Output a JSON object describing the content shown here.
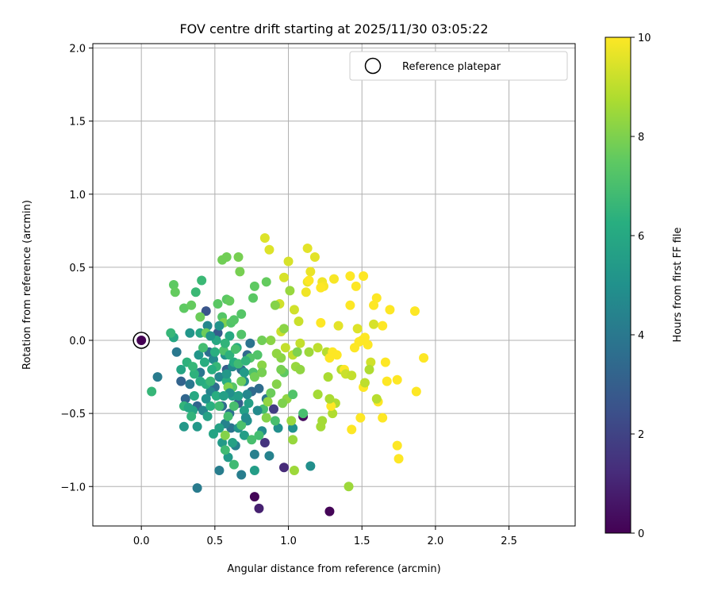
{
  "chart_data": {
    "type": "scatter",
    "title": "FOV centre drift starting at 2025/11/30 03:05:22",
    "xlabel": "Angular distance from reference (arcmin)",
    "ylabel": "Rotation from reference (arcmin)",
    "xlim": [
      -0.33,
      2.95
    ],
    "ylim": [
      -1.27,
      2.03
    ],
    "xticks": [
      0.0,
      0.5,
      1.0,
      1.5,
      2.0,
      2.5
    ],
    "yticks": [
      -1.0,
      -0.5,
      0.0,
      0.5,
      1.0,
      1.5,
      2.0
    ],
    "xtick_labels": [
      "0.0",
      "0.5",
      "1.0",
      "1.5",
      "2.0",
      "2.5"
    ],
    "ytick_labels": [
      "−1.0",
      "−0.5",
      "0.0",
      "0.5",
      "1.0",
      "1.5",
      "2.0"
    ],
    "grid": true,
    "legend": {
      "position": "top-right",
      "entries": [
        "Reference platepar"
      ]
    },
    "reference_point": {
      "x": 0.0,
      "y": 0.0,
      "hours": 0.0
    },
    "colorbar": {
      "label": "Hours from first FF file",
      "range": [
        0,
        10
      ],
      "ticks": [
        0,
        2,
        4,
        6,
        8,
        10
      ],
      "tick_labels": [
        "0",
        "2",
        "4",
        "6",
        "8",
        "10"
      ],
      "colormap": "viridis"
    },
    "points": [
      {
        "x": 0.77,
        "y": -1.07,
        "h": 0.1
      },
      {
        "x": 1.28,
        "y": -1.17,
        "h": 0.1
      },
      {
        "x": 1.1,
        "y": -0.52,
        "h": 0.3
      },
      {
        "x": 0.8,
        "y": -1.15,
        "h": 0.9
      },
      {
        "x": 0.97,
        "y": -0.87,
        "h": 1.2
      },
      {
        "x": 0.84,
        "y": -0.7,
        "h": 1.5
      },
      {
        "x": 0.9,
        "y": -0.47,
        "h": 1.8
      },
      {
        "x": 0.44,
        "y": 0.2,
        "h": 2.6
      },
      {
        "x": 0.52,
        "y": 0.05,
        "h": 2.9
      },
      {
        "x": 0.58,
        "y": -0.2,
        "h": 3.0
      },
      {
        "x": 0.66,
        "y": -0.43,
        "h": 3.1
      },
      {
        "x": 0.27,
        "y": -0.28,
        "h": 3.2
      },
      {
        "x": 0.38,
        "y": -0.45,
        "h": 3.3
      },
      {
        "x": 0.3,
        "y": -0.4,
        "h": 3.3
      },
      {
        "x": 0.72,
        "y": -0.1,
        "h": 3.4
      },
      {
        "x": 0.75,
        "y": -0.35,
        "h": 3.4
      },
      {
        "x": 0.8,
        "y": -0.33,
        "h": 3.5
      },
      {
        "x": 0.55,
        "y": -0.45,
        "h": 3.5
      },
      {
        "x": 0.5,
        "y": -0.32,
        "h": 3.6
      },
      {
        "x": 0.46,
        "y": -0.08,
        "h": 3.6
      },
      {
        "x": 0.6,
        "y": -0.5,
        "h": 3.7
      },
      {
        "x": 0.68,
        "y": -0.2,
        "h": 3.7
      },
      {
        "x": 0.74,
        "y": -0.02,
        "h": 3.8
      },
      {
        "x": 0.61,
        "y": -0.6,
        "h": 3.8
      },
      {
        "x": 0.85,
        "y": -0.4,
        "h": 3.9
      },
      {
        "x": 0.4,
        "y": -0.22,
        "h": 3.9
      },
      {
        "x": 0.33,
        "y": -0.3,
        "h": 4.0
      },
      {
        "x": 0.24,
        "y": -0.08,
        "h": 4.0
      },
      {
        "x": 0.11,
        "y": -0.25,
        "h": 4.1
      },
      {
        "x": 0.38,
        "y": -1.01,
        "h": 4.1
      },
      {
        "x": 0.53,
        "y": -0.89,
        "h": 4.2
      },
      {
        "x": 0.68,
        "y": -0.92,
        "h": 4.2
      },
      {
        "x": 0.64,
        "y": -0.72,
        "h": 4.3
      },
      {
        "x": 0.77,
        "y": -0.78,
        "h": 4.3
      },
      {
        "x": 0.87,
        "y": -0.79,
        "h": 4.4
      },
      {
        "x": 0.57,
        "y": -0.57,
        "h": 4.4
      },
      {
        "x": 0.42,
        "y": -0.48,
        "h": 4.5
      },
      {
        "x": 0.47,
        "y": -0.35,
        "h": 4.5
      },
      {
        "x": 0.53,
        "y": -0.25,
        "h": 4.6
      },
      {
        "x": 0.45,
        "y": 0.1,
        "h": 4.6
      },
      {
        "x": 0.49,
        "y": -0.13,
        "h": 4.7
      },
      {
        "x": 0.62,
        "y": -0.18,
        "h": 4.7
      },
      {
        "x": 0.7,
        "y": -0.28,
        "h": 4.8
      },
      {
        "x": 0.82,
        "y": -0.62,
        "h": 4.8
      },
      {
        "x": 1.15,
        "y": -0.86,
        "h": 4.9
      },
      {
        "x": 0.93,
        "y": -0.6,
        "h": 4.9
      },
      {
        "x": 1.03,
        "y": -0.6,
        "h": 5.0
      },
      {
        "x": 0.72,
        "y": -0.55,
        "h": 5.0
      },
      {
        "x": 0.66,
        "y": -0.6,
        "h": 5.1
      },
      {
        "x": 0.57,
        "y": -0.1,
        "h": 5.1
      },
      {
        "x": 0.39,
        "y": -0.1,
        "h": 5.2
      },
      {
        "x": 0.33,
        "y": 0.05,
        "h": 5.2
      },
      {
        "x": 0.29,
        "y": -0.59,
        "h": 5.3
      },
      {
        "x": 0.38,
        "y": -0.59,
        "h": 5.3
      },
      {
        "x": 0.55,
        "y": -0.7,
        "h": 5.4
      },
      {
        "x": 0.59,
        "y": -0.8,
        "h": 5.4
      },
      {
        "x": 0.77,
        "y": -0.89,
        "h": 5.5
      },
      {
        "x": 0.7,
        "y": -0.65,
        "h": 5.5
      },
      {
        "x": 0.73,
        "y": -0.43,
        "h": 5.6
      },
      {
        "x": 0.62,
        "y": -0.38,
        "h": 5.6
      },
      {
        "x": 0.53,
        "y": -0.6,
        "h": 5.7
      },
      {
        "x": 0.45,
        "y": -0.52,
        "h": 5.7
      },
      {
        "x": 0.35,
        "y": -0.48,
        "h": 5.8
      },
      {
        "x": 0.27,
        "y": -0.2,
        "h": 5.8
      },
      {
        "x": 0.22,
        "y": 0.02,
        "h": 5.9
      },
      {
        "x": 0.4,
        "y": 0.05,
        "h": 5.9
      },
      {
        "x": 0.51,
        "y": 0.0,
        "h": 6.0
      },
      {
        "x": 0.6,
        "y": 0.03,
        "h": 6.0
      },
      {
        "x": 0.65,
        "y": -0.05,
        "h": 6.1
      },
      {
        "x": 0.63,
        "y": -0.15,
        "h": 6.1
      },
      {
        "x": 0.58,
        "y": -0.28,
        "h": 6.2
      },
      {
        "x": 0.51,
        "y": -0.38,
        "h": 6.2
      },
      {
        "x": 0.47,
        "y": -0.45,
        "h": 6.3
      },
      {
        "x": 0.44,
        "y": -0.3,
        "h": 6.3
      },
      {
        "x": 0.36,
        "y": -0.23,
        "h": 6.4
      },
      {
        "x": 0.31,
        "y": -0.15,
        "h": 6.4
      },
      {
        "x": 0.29,
        "y": -0.45,
        "h": 6.5
      },
      {
        "x": 0.34,
        "y": -0.52,
        "h": 6.5
      },
      {
        "x": 0.07,
        "y": -0.35,
        "h": 6.6
      },
      {
        "x": 0.2,
        "y": 0.05,
        "h": 6.6
      },
      {
        "x": 0.41,
        "y": 0.41,
        "h": 6.7
      },
      {
        "x": 0.37,
        "y": 0.33,
        "h": 6.7
      },
      {
        "x": 0.63,
        "y": -0.85,
        "h": 6.8
      },
      {
        "x": 0.57,
        "y": -0.75,
        "h": 6.8
      },
      {
        "x": 0.8,
        "y": -0.65,
        "h": 6.9
      },
      {
        "x": 0.83,
        "y": -0.47,
        "h": 6.9
      },
      {
        "x": 0.91,
        "y": -0.55,
        "h": 7.0
      },
      {
        "x": 0.75,
        "y": -0.68,
        "h": 7.0
      },
      {
        "x": 0.68,
        "y": -0.58,
        "h": 7.1
      },
      {
        "x": 0.76,
        "y": -0.22,
        "h": 7.1
      },
      {
        "x": 0.68,
        "y": 0.04,
        "h": 7.2
      },
      {
        "x": 0.74,
        "y": -0.12,
        "h": 7.2
      },
      {
        "x": 0.62,
        "y": -0.32,
        "h": 7.3
      },
      {
        "x": 0.55,
        "y": 0.16,
        "h": 7.3
      },
      {
        "x": 0.52,
        "y": 0.25,
        "h": 7.4
      },
      {
        "x": 0.58,
        "y": 0.28,
        "h": 7.4
      },
      {
        "x": 0.29,
        "y": 0.22,
        "h": 7.5
      },
      {
        "x": 0.22,
        "y": 0.38,
        "h": 7.5
      },
      {
        "x": 0.23,
        "y": 0.33,
        "h": 7.6
      },
      {
        "x": 0.34,
        "y": 0.24,
        "h": 7.6
      },
      {
        "x": 0.4,
        "y": 0.16,
        "h": 7.7
      },
      {
        "x": 0.44,
        "y": 0.05,
        "h": 7.7
      },
      {
        "x": 0.55,
        "y": 0.55,
        "h": 7.8
      },
      {
        "x": 0.58,
        "y": 0.57,
        "h": 7.8
      },
      {
        "x": 0.66,
        "y": 0.57,
        "h": 7.9
      },
      {
        "x": 0.67,
        "y": 0.47,
        "h": 7.9
      },
      {
        "x": 0.56,
        "y": 0.12,
        "h": 8.0
      },
      {
        "x": 0.59,
        "y": -0.32,
        "h": 8.0
      },
      {
        "x": 0.57,
        "y": -0.65,
        "h": 8.1
      },
      {
        "x": 0.85,
        "y": -0.53,
        "h": 8.1
      },
      {
        "x": 0.82,
        "y": -0.17,
        "h": 8.2
      },
      {
        "x": 0.88,
        "y": 0.0,
        "h": 8.2
      },
      {
        "x": 0.86,
        "y": -0.42,
        "h": 8.3
      },
      {
        "x": 0.99,
        "y": -0.4,
        "h": 8.3
      },
      {
        "x": 1.02,
        "y": -0.55,
        "h": 8.4
      },
      {
        "x": 1.03,
        "y": -0.68,
        "h": 8.4
      },
      {
        "x": 1.04,
        "y": -0.89,
        "h": 8.5
      },
      {
        "x": 1.41,
        "y": -1.0,
        "h": 8.5
      },
      {
        "x": 1.23,
        "y": -0.55,
        "h": 8.6
      },
      {
        "x": 1.22,
        "y": -0.59,
        "h": 8.6
      },
      {
        "x": 1.27,
        "y": -0.25,
        "h": 8.7
      },
      {
        "x": 1.2,
        "y": -0.37,
        "h": 8.7
      },
      {
        "x": 1.32,
        "y": -0.43,
        "h": 8.8
      },
      {
        "x": 1.3,
        "y": -0.5,
        "h": 8.8
      },
      {
        "x": 1.36,
        "y": -0.2,
        "h": 8.9
      },
      {
        "x": 1.26,
        "y": -0.08,
        "h": 8.9
      },
      {
        "x": 1.2,
        "y": -0.05,
        "h": 9.0
      },
      {
        "x": 1.03,
        "y": -0.1,
        "h": 9.0
      },
      {
        "x": 1.08,
        "y": -0.02,
        "h": 9.1
      },
      {
        "x": 0.98,
        "y": -0.05,
        "h": 9.1
      },
      {
        "x": 0.95,
        "y": 0.06,
        "h": 9.2
      },
      {
        "x": 1.07,
        "y": 0.13,
        "h": 9.2
      },
      {
        "x": 1.04,
        "y": 0.21,
        "h": 9.3
      },
      {
        "x": 0.94,
        "y": 0.25,
        "h": 9.3
      },
      {
        "x": 0.97,
        "y": 0.43,
        "h": 9.4
      },
      {
        "x": 1.0,
        "y": 0.54,
        "h": 9.4
      },
      {
        "x": 0.87,
        "y": 0.62,
        "h": 9.5
      },
      {
        "x": 0.84,
        "y": 0.7,
        "h": 9.5
      },
      {
        "x": 1.13,
        "y": 0.63,
        "h": 9.6
      },
      {
        "x": 1.18,
        "y": 0.57,
        "h": 9.6
      },
      {
        "x": 1.15,
        "y": 0.47,
        "h": 9.7
      },
      {
        "x": 1.13,
        "y": 0.4,
        "h": 9.7
      },
      {
        "x": 1.23,
        "y": 0.4,
        "h": 9.8
      },
      {
        "x": 1.12,
        "y": 0.33,
        "h": 9.8
      },
      {
        "x": 1.24,
        "y": 0.37,
        "h": 9.9
      },
      {
        "x": 1.31,
        "y": 0.42,
        "h": 9.9
      },
      {
        "x": 1.42,
        "y": 0.44,
        "h": 10.0
      },
      {
        "x": 1.51,
        "y": 0.44,
        "h": 10.0
      },
      {
        "x": 1.46,
        "y": 0.37,
        "h": 10.0
      },
      {
        "x": 1.6,
        "y": 0.29,
        "h": 10.0
      },
      {
        "x": 1.58,
        "y": 0.24,
        "h": 10.0
      },
      {
        "x": 1.42,
        "y": 0.24,
        "h": 10.0
      },
      {
        "x": 1.69,
        "y": 0.21,
        "h": 10.0
      },
      {
        "x": 1.86,
        "y": 0.2,
        "h": 10.0
      },
      {
        "x": 1.64,
        "y": 0.1,
        "h": 10.0
      },
      {
        "x": 1.5,
        "y": 0.0,
        "h": 10.0
      },
      {
        "x": 1.54,
        "y": -0.03,
        "h": 10.0
      },
      {
        "x": 1.48,
        "y": -0.01,
        "h": 10.0
      },
      {
        "x": 1.45,
        "y": -0.05,
        "h": 10.0
      },
      {
        "x": 1.52,
        "y": 0.02,
        "h": 10.0
      },
      {
        "x": 1.92,
        "y": -0.12,
        "h": 10.0
      },
      {
        "x": 1.66,
        "y": -0.15,
        "h": 10.0
      },
      {
        "x": 1.74,
        "y": -0.27,
        "h": 10.0
      },
      {
        "x": 1.87,
        "y": -0.35,
        "h": 10.0
      },
      {
        "x": 1.67,
        "y": -0.28,
        "h": 10.0
      },
      {
        "x": 1.51,
        "y": -0.32,
        "h": 10.0
      },
      {
        "x": 1.38,
        "y": -0.2,
        "h": 10.0
      },
      {
        "x": 1.3,
        "y": -0.08,
        "h": 10.0
      },
      {
        "x": 1.28,
        "y": -0.12,
        "h": 10.0
      },
      {
        "x": 1.33,
        "y": -0.1,
        "h": 10.0
      },
      {
        "x": 1.49,
        "y": -0.53,
        "h": 10.0
      },
      {
        "x": 1.61,
        "y": -0.42,
        "h": 10.0
      },
      {
        "x": 1.64,
        "y": -0.53,
        "h": 10.0
      },
      {
        "x": 1.74,
        "y": -0.72,
        "h": 10.0
      },
      {
        "x": 1.75,
        "y": -0.81,
        "h": 10.0
      },
      {
        "x": 1.43,
        "y": -0.61,
        "h": 10.0
      },
      {
        "x": 1.29,
        "y": -0.45,
        "h": 10.0
      },
      {
        "x": 1.22,
        "y": 0.12,
        "h": 10.0
      },
      {
        "x": 1.22,
        "y": 0.36,
        "h": 10.0
      },
      {
        "x": 1.14,
        "y": 0.41,
        "h": 10.0
      },
      {
        "x": 1.34,
        "y": 0.1,
        "h": 9.6
      },
      {
        "x": 1.47,
        "y": 0.08,
        "h": 9.5
      },
      {
        "x": 1.58,
        "y": 0.11,
        "h": 9.4
      },
      {
        "x": 1.56,
        "y": -0.15,
        "h": 9.3
      },
      {
        "x": 1.39,
        "y": -0.23,
        "h": 9.2
      },
      {
        "x": 1.43,
        "y": -0.24,
        "h": 9.1
      },
      {
        "x": 1.52,
        "y": -0.29,
        "h": 9.0
      },
      {
        "x": 1.6,
        "y": -0.4,
        "h": 8.9
      },
      {
        "x": 1.55,
        "y": -0.2,
        "h": 8.8
      },
      {
        "x": 1.28,
        "y": -0.4,
        "h": 8.7
      },
      {
        "x": 1.2,
        "y": -0.37,
        "h": 8.6
      },
      {
        "x": 1.14,
        "y": -0.08,
        "h": 8.5
      },
      {
        "x": 1.05,
        "y": -0.18,
        "h": 8.4
      },
      {
        "x": 1.08,
        "y": -0.2,
        "h": 8.3
      },
      {
        "x": 0.95,
        "y": -0.12,
        "h": 8.2
      },
      {
        "x": 0.92,
        "y": -0.3,
        "h": 8.1
      },
      {
        "x": 0.96,
        "y": -0.43,
        "h": 8.0
      },
      {
        "x": 0.82,
        "y": -0.22,
        "h": 7.9
      },
      {
        "x": 0.77,
        "y": -0.25,
        "h": 7.8
      },
      {
        "x": 0.68,
        "y": -0.28,
        "h": 7.7
      },
      {
        "x": 0.85,
        "y": 0.4,
        "h": 7.6
      },
      {
        "x": 0.77,
        "y": 0.37,
        "h": 7.5
      },
      {
        "x": 0.76,
        "y": 0.29,
        "h": 7.4
      },
      {
        "x": 0.68,
        "y": 0.18,
        "h": 7.3
      },
      {
        "x": 0.61,
        "y": 0.12,
        "h": 7.2
      },
      {
        "x": 0.56,
        "y": -0.07,
        "h": 7.1
      },
      {
        "x": 0.63,
        "y": -0.45,
        "h": 7.0
      },
      {
        "x": 0.59,
        "y": -0.52,
        "h": 6.9
      },
      {
        "x": 0.53,
        "y": -0.45,
        "h": 6.8
      },
      {
        "x": 0.47,
        "y": -0.28,
        "h": 6.7
      },
      {
        "x": 0.51,
        "y": -0.18,
        "h": 6.6
      },
      {
        "x": 0.57,
        "y": -0.02,
        "h": 6.5
      },
      {
        "x": 0.6,
        "y": -0.1,
        "h": 6.4
      },
      {
        "x": 0.5,
        "y": -0.08,
        "h": 6.3
      },
      {
        "x": 0.43,
        "y": -0.15,
        "h": 6.2
      },
      {
        "x": 0.4,
        "y": -0.28,
        "h": 6.1
      },
      {
        "x": 0.36,
        "y": -0.38,
        "h": 6.0
      },
      {
        "x": 0.32,
        "y": -0.46,
        "h": 5.9
      },
      {
        "x": 0.49,
        "y": -0.64,
        "h": 5.8
      },
      {
        "x": 0.62,
        "y": -0.7,
        "h": 5.7
      },
      {
        "x": 0.7,
        "y": -0.48,
        "h": 5.6
      },
      {
        "x": 0.66,
        "y": -0.38,
        "h": 5.5
      },
      {
        "x": 0.7,
        "y": -0.22,
        "h": 5.4
      },
      {
        "x": 0.58,
        "y": -0.23,
        "h": 5.3
      },
      {
        "x": 0.47,
        "y": 0.03,
        "h": 5.2
      },
      {
        "x": 0.53,
        "y": 0.1,
        "h": 5.1
      },
      {
        "x": 0.44,
        "y": -0.4,
        "h": 5.0
      },
      {
        "x": 0.6,
        "y": -0.36,
        "h": 4.9
      },
      {
        "x": 0.71,
        "y": -0.53,
        "h": 4.8
      },
      {
        "x": 0.79,
        "y": -0.48,
        "h": 4.7
      },
      {
        "x": 0.72,
        "y": -0.37,
        "h": 4.6
      },
      {
        "x": 1.1,
        "y": -0.5,
        "h": 7.0
      },
      {
        "x": 1.03,
        "y": -0.37,
        "h": 7.2
      },
      {
        "x": 0.97,
        "y": -0.22,
        "h": 7.5
      },
      {
        "x": 1.06,
        "y": -0.08,
        "h": 8.0
      },
      {
        "x": 0.97,
        "y": 0.08,
        "h": 8.2
      },
      {
        "x": 1.01,
        "y": 0.34,
        "h": 8.4
      },
      {
        "x": 0.91,
        "y": 0.24,
        "h": 8.1
      },
      {
        "x": 0.82,
        "y": 0.0,
        "h": 7.8
      },
      {
        "x": 0.88,
        "y": -0.36,
        "h": 7.7
      },
      {
        "x": 0.95,
        "y": -0.2,
        "h": 7.9
      },
      {
        "x": 0.92,
        "y": -0.09,
        "h": 8.3
      },
      {
        "x": 0.35,
        "y": -0.18,
        "h": 6.6
      },
      {
        "x": 0.42,
        "y": -0.05,
        "h": 6.9
      },
      {
        "x": 0.48,
        "y": -0.2,
        "h": 6.2
      },
      {
        "x": 0.56,
        "y": -0.38,
        "h": 5.6
      },
      {
        "x": 0.64,
        "y": -0.06,
        "h": 7.0
      },
      {
        "x": 0.66,
        "y": -0.16,
        "h": 6.8
      },
      {
        "x": 0.71,
        "y": -0.14,
        "h": 6.5
      },
      {
        "x": 0.6,
        "y": 0.27,
        "h": 7.6
      },
      {
        "x": 0.63,
        "y": 0.14,
        "h": 7.3
      },
      {
        "x": 0.79,
        "y": -0.1,
        "h": 7.2
      }
    ]
  }
}
